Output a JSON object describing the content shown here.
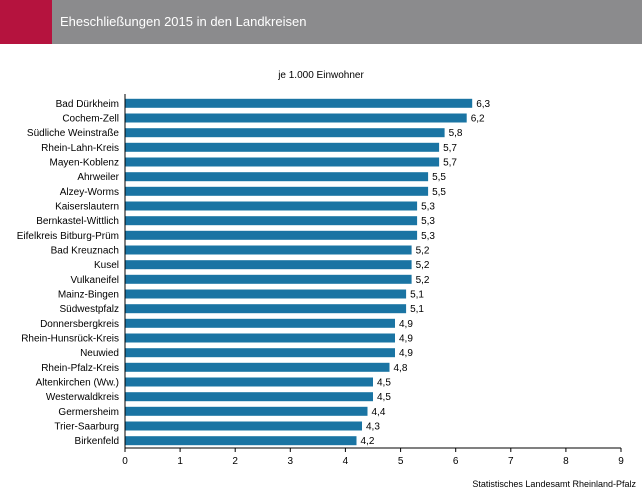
{
  "header": {
    "title": "Eheschließungen 2015 in den Landkreisen",
    "accent_color": "#b5133e",
    "bar_color": "#8b8b8d"
  },
  "chart_data": {
    "type": "bar",
    "orientation": "horizontal",
    "title": "Eheschließungen 2015 in den Landkreisen",
    "subtitle": "je 1.000 Einwohner",
    "categories": [
      "Bad Dürkheim",
      "Cochem-Zell",
      "Südliche Weinstraße",
      "Rhein-Lahn-Kreis",
      "Mayen-Koblenz",
      "Ahrweiler",
      "Alzey-Worms",
      "Kaiserslautern",
      "Bernkastel-Wittlich",
      "Eifelkreis Bitburg-Prüm",
      "Bad Kreuznach",
      "Kusel",
      "Vulkaneifel",
      "Mainz-Bingen",
      "Südwestpfalz",
      "Donnersbergkreis",
      "Rhein-Hunsrück-Kreis",
      "Neuwied",
      "Rhein-Pfalz-Kreis",
      "Altenkirchen (Ww.)",
      "Westerwaldkreis",
      "Germersheim",
      "Trier-Saarburg",
      "Birkenfeld"
    ],
    "values": [
      6.3,
      6.2,
      5.8,
      5.7,
      5.7,
      5.5,
      5.5,
      5.3,
      5.3,
      5.3,
      5.2,
      5.2,
      5.2,
      5.1,
      5.1,
      4.9,
      4.9,
      4.9,
      4.8,
      4.5,
      4.5,
      4.4,
      4.3,
      4.2
    ],
    "value_labels": [
      "6,3",
      "6,2",
      "5,8",
      "5,7",
      "5,7",
      "5,5",
      "5,5",
      "5,3",
      "5,3",
      "5,3",
      "5,2",
      "5,2",
      "5,2",
      "5,1",
      "5,1",
      "4,9",
      "4,9",
      "4,9",
      "4,8",
      "4,5",
      "4,5",
      "4,4",
      "4,3",
      "4,2"
    ],
    "xlim": [
      0,
      9
    ],
    "x_ticks": [
      "0",
      "1",
      "2",
      "3",
      "4",
      "5",
      "6",
      "7",
      "8",
      "9"
    ],
    "grid": false,
    "legend": "none",
    "bar_color": "#1a74a3"
  },
  "source": "Statistisches Landesamt Rheinland-Pfalz"
}
